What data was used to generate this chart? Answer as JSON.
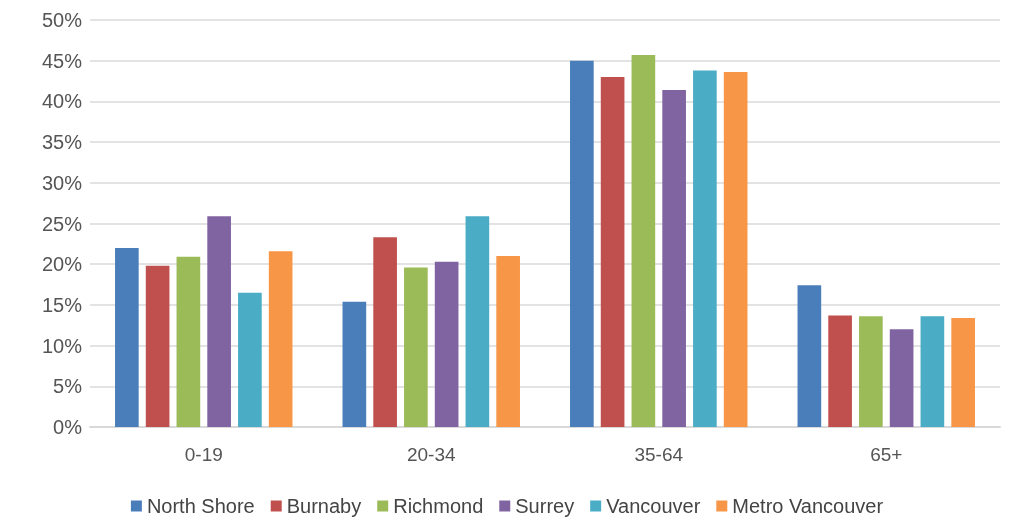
{
  "chart_data": {
    "type": "bar",
    "categories": [
      "0-19",
      "20-34",
      "35-64",
      "65+"
    ],
    "series": [
      {
        "name": "North Shore",
        "color": "#4a7ebb",
        "values": [
          22.0,
          15.4,
          45.0,
          17.4
        ]
      },
      {
        "name": "Burnaby",
        "color": "#c0504d",
        "values": [
          19.8,
          23.3,
          43.0,
          13.7
        ]
      },
      {
        "name": "Richmond",
        "color": "#9bbb59",
        "values": [
          20.9,
          19.6,
          45.7,
          13.6
        ]
      },
      {
        "name": "Surrey",
        "color": "#8064a2",
        "values": [
          25.9,
          20.3,
          41.4,
          12.0
        ]
      },
      {
        "name": "Vancouver",
        "color": "#4bacc6",
        "values": [
          16.5,
          25.9,
          43.8,
          13.6
        ]
      },
      {
        "name": "Metro Vancouver",
        "color": "#f79646",
        "values": [
          21.6,
          21.0,
          43.6,
          13.4
        ]
      }
    ],
    "ylim": [
      0,
      50
    ],
    "yticks": [
      {
        "value": 0,
        "label": "0%"
      },
      {
        "value": 5,
        "label": "5%"
      },
      {
        "value": 10,
        "label": "10%"
      },
      {
        "value": 15,
        "label": "15%"
      },
      {
        "value": 20,
        "label": "20%"
      },
      {
        "value": 25,
        "label": "25%"
      },
      {
        "value": 30,
        "label": "30%"
      },
      {
        "value": 35,
        "label": "35%"
      },
      {
        "value": 40,
        "label": "40%"
      },
      {
        "value": 45,
        "label": "45%"
      },
      {
        "value": 50,
        "label": "50%"
      }
    ],
    "grid": "y",
    "legend": "bottom"
  }
}
